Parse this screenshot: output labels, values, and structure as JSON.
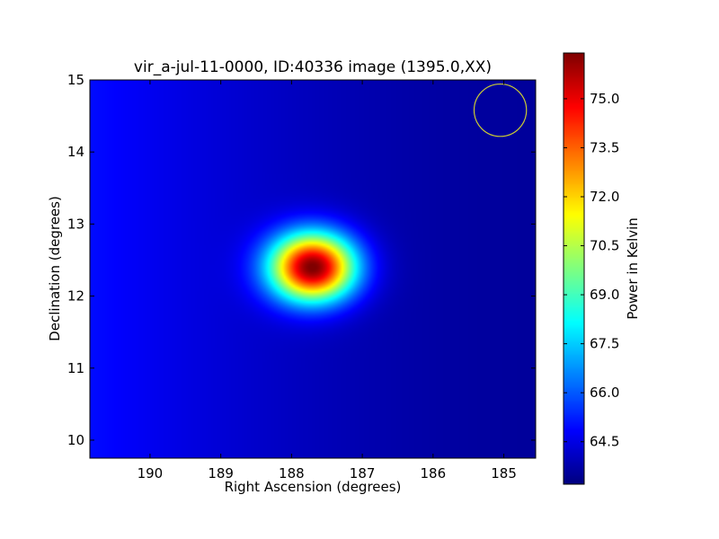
{
  "chart_data": {
    "type": "heatmap",
    "title": "vir_a-jul-11-0000, ID:40336 image (1395.0,XX)",
    "xlabel": "Right Ascension (degrees)",
    "ylabel": "Declination (degrees)",
    "xlim": [
      190.85,
      184.55
    ],
    "ylim": [
      9.75,
      15.0
    ],
    "x_axis_direction": "decreasing-right",
    "xticks": [
      190,
      189,
      188,
      187,
      186,
      185
    ],
    "yticks": [
      10,
      11,
      12,
      13,
      14,
      15
    ],
    "colormap": "jet",
    "colorbar": {
      "label": "Power in Kelvin",
      "range": [
        63.2,
        76.4
      ],
      "ticks": [
        "64.5",
        "66.0",
        "67.5",
        "69.0",
        "70.5",
        "72.0",
        "73.5",
        "75.0"
      ]
    },
    "background_level": 63.8,
    "background_gradient": "brighter toward left (RA 190.8 ≈ 64.8 K), darker toward right (RA 185 ≈ 63.4 K)",
    "source": {
      "peak_ra": 187.7,
      "peak_dec": 12.4,
      "peak_value": 76.3,
      "sigma_ra_deg": 0.42,
      "sigma_dec_deg": 0.33
    },
    "beam_marker": {
      "shape": "circle",
      "center_ra": 185.05,
      "center_dec": 14.58,
      "radius_deg": 0.37,
      "color": "#cccc33"
    },
    "grid": false
  }
}
